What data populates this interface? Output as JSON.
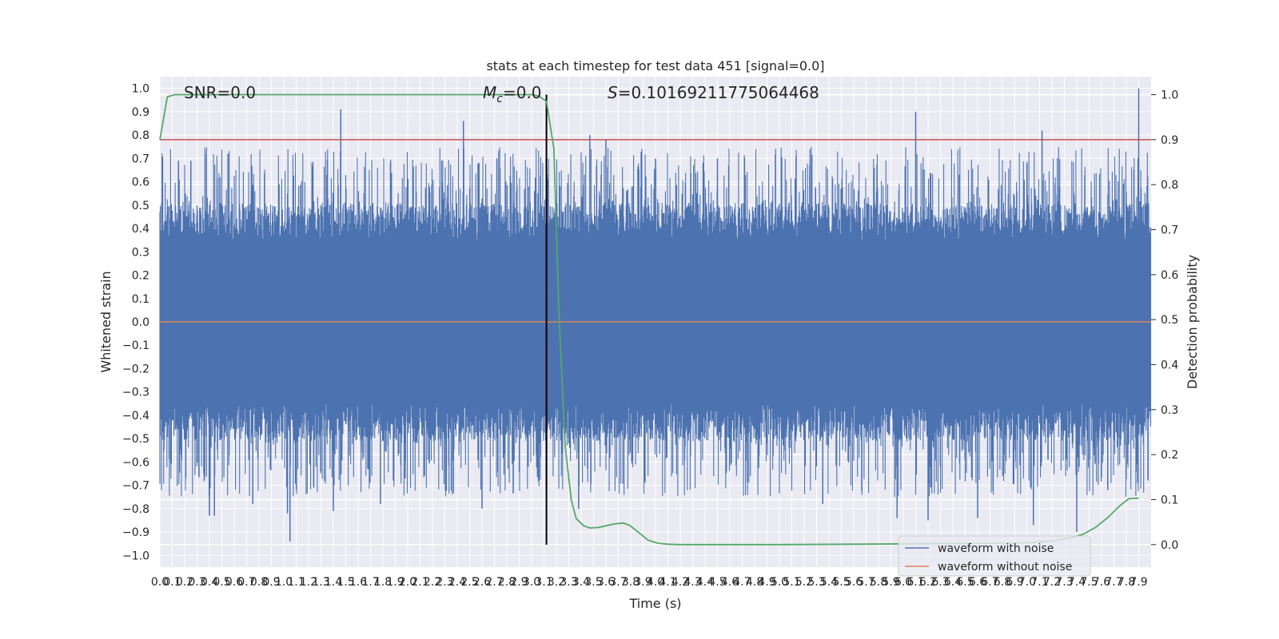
{
  "chart_data": {
    "type": "line",
    "title": "stats at each timestep for test data 451 [signal=0.0]",
    "xlabel": "Time (s)",
    "ylabel": "Whitened strain",
    "y2label": "Detection probability",
    "xlim": [
      0.0,
      8.0
    ],
    "ylim": [
      -1.05,
      1.05
    ],
    "y2lim": [
      -0.05,
      1.04
    ],
    "x_ticks": [
      "0.0",
      "0.1",
      "0.2",
      "0.3",
      "0.4",
      "0.5",
      "0.6",
      "0.7",
      "0.8",
      "0.9",
      "1.0",
      "1.1",
      "1.2",
      "1.3",
      "1.4",
      "1.5",
      "1.6",
      "1.7",
      "1.8",
      "1.9",
      "2.0",
      "2.1",
      "2.2",
      "2.3",
      "2.4",
      "2.5",
      "2.6",
      "2.7",
      "2.8",
      "2.9",
      "3.0",
      "3.1",
      "3.2",
      "3.3",
      "3.4",
      "3.5",
      "3.6",
      "3.7",
      "3.8",
      "3.9",
      "4.0",
      "4.1",
      "4.2",
      "4.3",
      "4.4",
      "4.5",
      "4.6",
      "4.7",
      "4.8",
      "4.9",
      "5.0",
      "5.1",
      "5.2",
      "5.3",
      "5.4",
      "5.5",
      "5.6",
      "5.7",
      "5.8",
      "5.9",
      "6.0",
      "6.1",
      "6.2",
      "6.3",
      "6.4",
      "6.5",
      "6.6",
      "6.7",
      "6.8",
      "6.9",
      "7.0",
      "7.1",
      "7.2",
      "7.3",
      "7.4",
      "7.5",
      "7.6",
      "7.7",
      "7.8",
      "7.9"
    ],
    "y_ticks": [
      "−1.0",
      "−0.9",
      "−0.8",
      "−0.7",
      "−0.6",
      "−0.5",
      "−0.4",
      "−0.3",
      "−0.2",
      "−0.1",
      "0.0",
      "0.1",
      "0.2",
      "0.3",
      "0.4",
      "0.5",
      "0.6",
      "0.7",
      "0.8",
      "0.9",
      "1.0"
    ],
    "y2_ticks": [
      "0.0",
      "0.1",
      "0.2",
      "0.3",
      "0.4",
      "0.5",
      "0.6",
      "0.7",
      "0.8",
      "0.9",
      "1.0"
    ],
    "annotations": {
      "snr": "SNR=0.0",
      "mc_symbol": "M",
      "mc_sub": "c",
      "mc_value": "=0.0",
      "s_symbol": "S",
      "s_value": "=0.10169211775064468"
    },
    "threshold_line": {
      "axis": "y2",
      "value": 0.9,
      "color": "#c44e52"
    },
    "marker_line": {
      "x": 3.12,
      "color": "#000000"
    },
    "legend": {
      "placement": "lower right",
      "entries": [
        {
          "name": "waveform with noise",
          "color": "#4c72b0"
        },
        {
          "name": "waveform without noise",
          "color": "#dd8452"
        }
      ]
    },
    "series": [
      {
        "name": "waveform with noise",
        "type": "noise",
        "color": "#4c72b0",
        "description_stats": {
          "core_range": [
            -0.35,
            0.35
          ],
          "envelope_max": 0.75,
          "envelope_min": -0.75
        },
        "spikes": [
          {
            "x": 0.15,
            "y": 0.69
          },
          {
            "x": 0.25,
            "y": 0.69
          },
          {
            "x": 0.4,
            "y": -0.83
          },
          {
            "x": 0.44,
            "y": -0.83
          },
          {
            "x": 0.55,
            "y": 0.72
          },
          {
            "x": 0.75,
            "y": -0.78
          },
          {
            "x": 1.03,
            "y": -0.82
          },
          {
            "x": 1.05,
            "y": -0.94
          },
          {
            "x": 1.4,
            "y": -0.81
          },
          {
            "x": 1.46,
            "y": 0.91
          },
          {
            "x": 1.78,
            "y": -0.78
          },
          {
            "x": 1.98,
            "y": -0.67
          },
          {
            "x": 2.45,
            "y": 0.86
          },
          {
            "x": 2.6,
            "y": -0.8
          },
          {
            "x": 2.72,
            "y": 0.7
          },
          {
            "x": 3.38,
            "y": -0.8
          },
          {
            "x": 3.47,
            "y": 0.8
          },
          {
            "x": 3.6,
            "y": 0.78
          },
          {
            "x": 4.0,
            "y": 0.7
          },
          {
            "x": 4.5,
            "y": 0.7
          },
          {
            "x": 5.35,
            "y": -0.78
          },
          {
            "x": 5.95,
            "y": -0.84
          },
          {
            "x": 6.1,
            "y": 0.9
          },
          {
            "x": 6.2,
            "y": -0.85
          },
          {
            "x": 6.6,
            "y": -0.84
          },
          {
            "x": 7.05,
            "y": -0.87
          },
          {
            "x": 7.12,
            "y": 0.82
          },
          {
            "x": 7.4,
            "y": -0.9
          },
          {
            "x": 7.65,
            "y": -0.72
          },
          {
            "x": 7.9,
            "y": 1.0
          }
        ]
      },
      {
        "name": "waveform without noise",
        "color": "#dd8452",
        "x": [
          0.0,
          8.0
        ],
        "y": [
          0.0,
          0.0
        ]
      },
      {
        "name": "",
        "axis": "y2",
        "color": "#55a868",
        "x": [
          0.0,
          0.06,
          0.12,
          0.3,
          1.0,
          2.0,
          2.9,
          3.0,
          3.06,
          3.12,
          3.18,
          3.22,
          3.27,
          3.32,
          3.36,
          3.42,
          3.47,
          3.54,
          3.6,
          3.67,
          3.74,
          3.79,
          3.86,
          3.94,
          4.02,
          4.1,
          4.2,
          4.4,
          5.0,
          5.6,
          6.2,
          6.7,
          7.0,
          7.2,
          7.35,
          7.45,
          7.55,
          7.65,
          7.75,
          7.82,
          7.9
        ],
        "y": [
          0.9,
          0.995,
          1.0,
          1.0,
          1.0,
          1.0,
          1.0,
          1.0,
          0.997,
          0.985,
          0.88,
          0.52,
          0.22,
          0.1,
          0.058,
          0.042,
          0.037,
          0.038,
          0.042,
          0.046,
          0.048,
          0.043,
          0.028,
          0.01,
          0.003,
          0.001,
          0.0,
          0.0,
          0.0,
          0.001,
          0.002,
          0.003,
          0.004,
          0.008,
          0.015,
          0.023,
          0.038,
          0.06,
          0.087,
          0.102,
          0.103
        ]
      }
    ]
  }
}
